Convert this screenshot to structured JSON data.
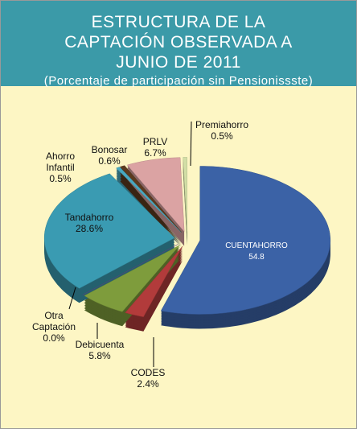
{
  "chart_data": {
    "type": "pie",
    "title": "ESTRUCTURA DE LA CAPTACIÓN OBSERVADA A JUNIO DE 2011",
    "subtitle": "(Porcentaje de participación sin Pensionissste)",
    "categories": [
      "CUENTAHORRO",
      "CODES",
      "Debicuenta",
      "Otra Captación",
      "Tandahorro",
      "Ahorro Infantil",
      "Bonosar",
      "PRLV",
      "Premiahorro"
    ],
    "values": [
      54.8,
      2.4,
      5.8,
      0.0,
      28.6,
      0.5,
      0.6,
      6.7,
      0.5
    ],
    "value_labels": [
      "54.8",
      "2.4%",
      "5.8%",
      "0.0%",
      "28.6%",
      "0.5%",
      "0.6%",
      "6.7%",
      "0.5%"
    ],
    "colors": [
      "#3b62a6",
      "#b23b3b",
      "#7e9c3c",
      "#6a4f8c",
      "#3a9bb2",
      "#48a8c0",
      "#5c3a1e",
      "#dba3a3",
      "#d2dea6"
    ]
  }
}
